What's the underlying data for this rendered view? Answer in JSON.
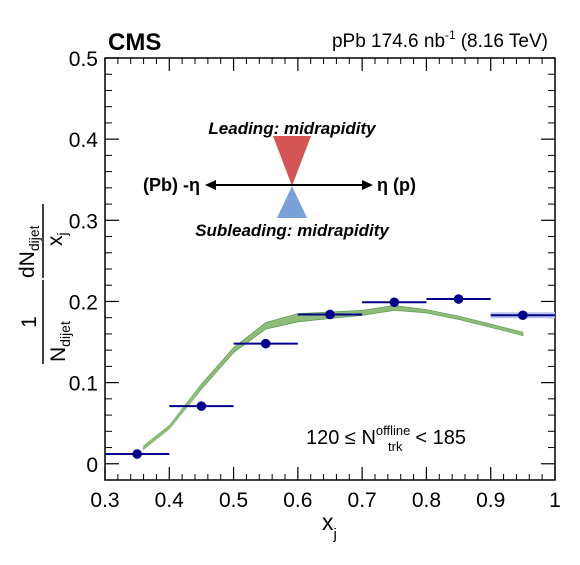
{
  "header": {
    "experiment": "CMS",
    "collision_label": "pPb 174.6 nb",
    "collision_exponent": "-1",
    "energy_label": "(8.16 TeV)"
  },
  "annotations": {
    "leading": "Leading: midrapidity",
    "subleading": "Subleading: midrapidity",
    "left_dir": "(Pb) -η",
    "right_dir": "η (p)",
    "selection_prefix": "120 ≤ N",
    "selection_sup": "offline",
    "selection_sub": "trk",
    "selection_suffix": "< 185"
  },
  "colors": {
    "data": "#00008b",
    "band": "#8fbc7a",
    "band_edge": "#5e9e52",
    "leading": "#d45555",
    "subleading": "#7aa0d8",
    "last_point_band": "#b8c8ee"
  },
  "chart_data": {
    "type": "scatter",
    "xlabel": "x",
    "xlabel_sub": "j",
    "ylabel_parts": {
      "frac1_num": "1",
      "frac1_den": "N",
      "frac1_den_sub": "dijet",
      "frac2_num": "dN",
      "frac2_num_sub": "dijet",
      "frac2_den": "x",
      "frac2_den_sub": "j"
    },
    "xlim": [
      0.3,
      1.0
    ],
    "ylim": [
      -0.02,
      0.5
    ],
    "xticks": [
      "0.3",
      "0.4",
      "0.5",
      "0.6",
      "0.7",
      "0.8",
      "0.9",
      "1"
    ],
    "yticks": [
      "0",
      "0.1",
      "0.2",
      "0.3",
      "0.4",
      "0.5"
    ],
    "legend": "none",
    "series": [
      {
        "type": "points",
        "x": [
          0.35,
          0.45,
          0.55,
          0.65,
          0.75,
          0.85,
          0.95
        ],
        "y": [
          0.012,
          0.071,
          0.148,
          0.184,
          0.199,
          0.203,
          0.183
        ],
        "xerr": [
          0.05,
          0.05,
          0.05,
          0.05,
          0.05,
          0.05,
          0.05
        ]
      },
      {
        "type": "band",
        "x": [
          0.36,
          0.4,
          0.45,
          0.5,
          0.55,
          0.6,
          0.65,
          0.7,
          0.75,
          0.8,
          0.85,
          0.9,
          0.95
        ],
        "y": [
          0.02,
          0.045,
          0.095,
          0.14,
          0.17,
          0.18,
          0.183,
          0.186,
          0.192,
          0.188,
          0.18,
          0.17,
          0.16
        ],
        "width": [
          0.002,
          0.002,
          0.003,
          0.003,
          0.004,
          0.005,
          0.004,
          0.003,
          0.003,
          0.002,
          0.002,
          0.002,
          0.002
        ]
      }
    ]
  }
}
